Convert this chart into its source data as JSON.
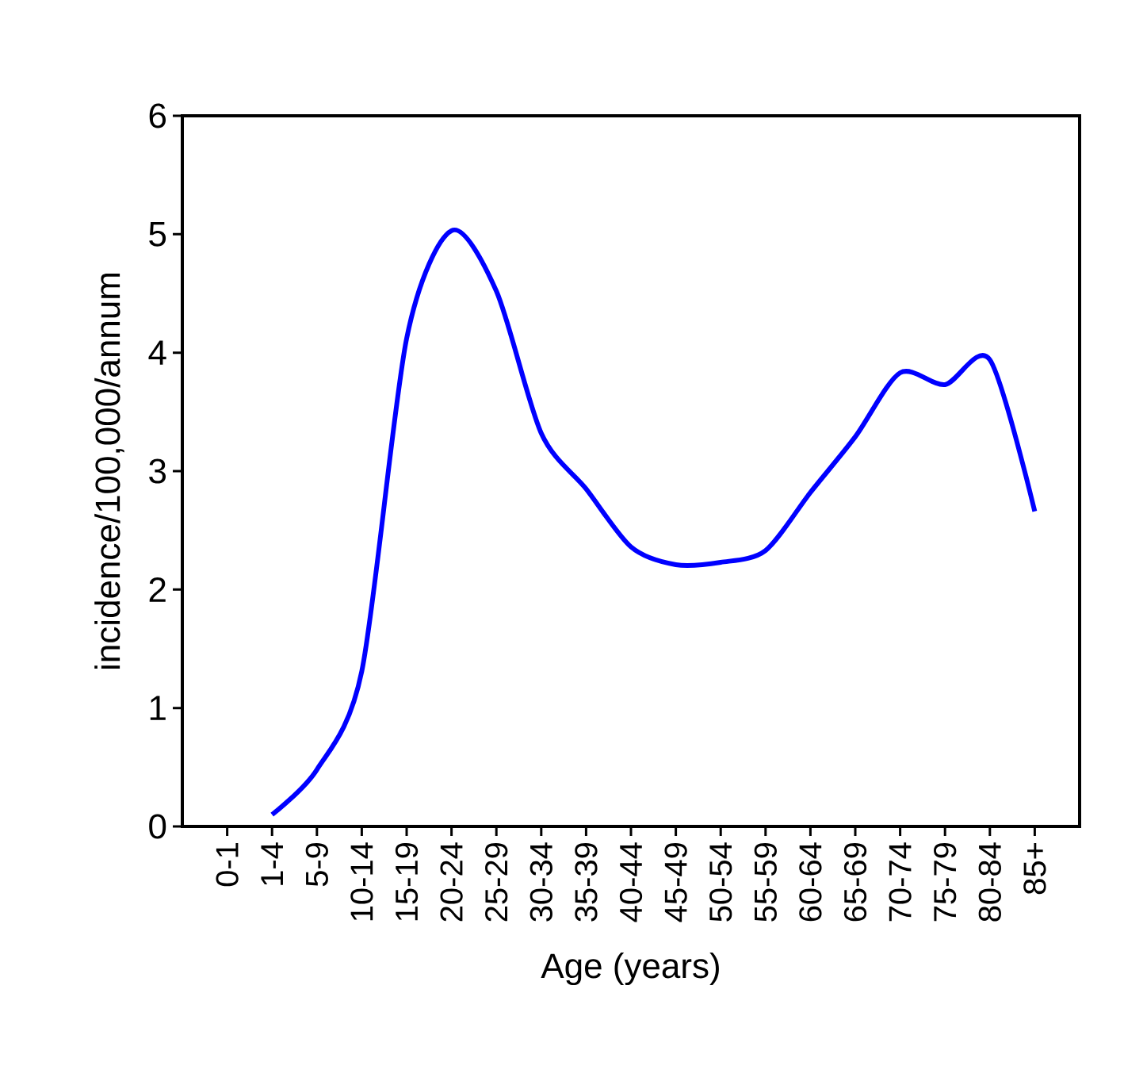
{
  "chart_data": {
    "type": "line",
    "xlabel": "Age (years)",
    "ylabel": "incidence/100,000/annum",
    "categories": [
      "0-1",
      "1-4",
      "5-9",
      "10-14",
      "15-19",
      "20-24",
      "25-29",
      "30-34",
      "35-39",
      "40-44",
      "45-49",
      "50-54",
      "55-59",
      "60-64",
      "65-69",
      "70-74",
      "75-79",
      "80-84",
      "85+"
    ],
    "series": [
      {
        "color": "#0000ff",
        "values": [
          null,
          0.1,
          0.48,
          1.31,
          4.12,
          5.03,
          4.52,
          3.32,
          2.85,
          2.36,
          2.21,
          2.23,
          2.33,
          2.82,
          3.29,
          3.83,
          3.73,
          3.94,
          2.66
        ]
      }
    ],
    "ylim": [
      0,
      6
    ],
    "yticks": [
      0,
      1,
      2,
      3,
      4,
      5,
      6
    ],
    "grid": false,
    "marker": "none",
    "line_style": "solid"
  }
}
